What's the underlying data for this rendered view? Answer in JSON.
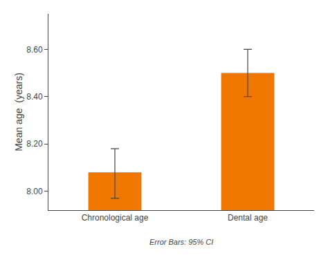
{
  "chart_data": {
    "type": "bar",
    "categories": [
      "Chronological age",
      "Dental age"
    ],
    "values": [
      8.08,
      8.5
    ],
    "error_minus": [
      0.11,
      0.1
    ],
    "error_plus": [
      0.1,
      0.1
    ],
    "color": "#F07800",
    "ylabel": "Mean age  (years)",
    "annotation": "Error Bars: 95% CI",
    "ylim": [
      7.92,
      8.75
    ],
    "yticks": [
      {
        "value": 8.0,
        "label": "8.00"
      },
      {
        "value": 8.2,
        "label": "8.20"
      },
      {
        "value": 8.4,
        "label": "8.40"
      },
      {
        "value": 8.6,
        "label": "8.60"
      }
    ],
    "grid": false
  }
}
